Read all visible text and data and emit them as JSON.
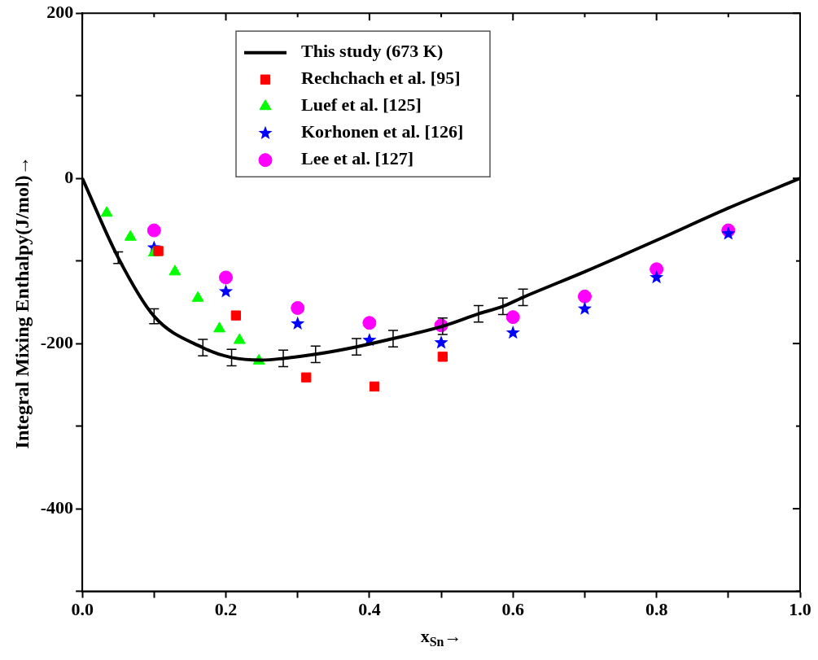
{
  "chart_data": {
    "type": "scatter",
    "xlabel": "x$_{Sn}$→",
    "ylabel": "Integral Mixing Enthalpy(J/mol)→",
    "xlim": [
      0,
      1
    ],
    "ylim": [
      -500,
      200
    ],
    "xticks": [
      {
        "value": 0,
        "label": "0.0"
      },
      {
        "value": 0.1,
        "label": null
      },
      {
        "value": 0.2,
        "label": "0.2"
      },
      {
        "value": 0.3,
        "label": null
      },
      {
        "value": 0.4,
        "label": "0.4"
      },
      {
        "value": 0.5,
        "label": null
      },
      {
        "value": 0.6,
        "label": "0.6"
      },
      {
        "value": 0.7,
        "label": null
      },
      {
        "value": 0.8,
        "label": "0.8"
      },
      {
        "value": 0.9,
        "label": null
      },
      {
        "value": 1,
        "label": "1.0"
      }
    ],
    "yticks": [
      {
        "value": -500,
        "label": null
      },
      -400,
      {
        "value": -300,
        "label": null
      },
      -200,
      {
        "value": -100,
        "label": null
      },
      0,
      {
        "value": 100,
        "label": null
      },
      200
    ],
    "grid": false,
    "legend": "top",
    "series": [
      {
        "name": "This study (673 K)",
        "type": "line",
        "color": "#000000",
        "marker": "none",
        "line_style": "solid",
        "x": [
          0,
          0.05,
          0.1,
          0.168,
          0.208,
          0.25,
          0.28,
          0.325,
          0.382,
          0.433,
          0.502,
          0.552,
          0.586,
          0.614,
          0.7,
          0.8,
          0.9,
          1.0
        ],
        "values": [
          0,
          -96,
          -167,
          -205,
          -217,
          -220,
          -218,
          -213,
          -204,
          -194,
          -179,
          -164,
          -155,
          -144,
          -113,
          -75,
          -36,
          0
        ],
        "errors": [
          null,
          7,
          9,
          10,
          10,
          null,
          10,
          10,
          10,
          10,
          10,
          10,
          10,
          10,
          null,
          null,
          null,
          null
        ]
      },
      {
        "name": "Rechchach et al. [95]",
        "color": "#ff0000",
        "marker": "square",
        "x": [
          0.106,
          0.214,
          0.312,
          0.407,
          0.502
        ],
        "values": [
          -88,
          -166,
          -241,
          -252,
          -216
        ]
      },
      {
        "name": "Luef et al. [125]",
        "color": "#00ff00",
        "marker": "triangle",
        "x": [
          0.034,
          0.067,
          0.1,
          0.129,
          0.161,
          0.191,
          0.219,
          0.246
        ],
        "values": [
          -42,
          -71,
          -90,
          -113,
          -145,
          -182,
          -196,
          -221
        ]
      },
      {
        "name": "Korhonen et al. [126]",
        "color": "#0000ff",
        "marker": "star",
        "x": [
          0.1,
          0.2,
          0.3,
          0.4,
          0.5,
          0.6,
          0.7,
          0.8,
          0.9
        ],
        "values": [
          -84,
          -137,
          -176,
          -196,
          -199,
          -187,
          -158,
          -120,
          -67
        ]
      },
      {
        "name": "Lee et al. [127]",
        "color": "#ff00ff",
        "marker": "circle",
        "x": [
          0.1,
          0.2,
          0.3,
          0.4,
          0.5,
          0.6,
          0.7,
          0.8,
          0.9
        ],
        "values": [
          -63,
          -120,
          -157,
          -175,
          -178,
          -168,
          -143,
          -110,
          -63
        ]
      }
    ]
  }
}
